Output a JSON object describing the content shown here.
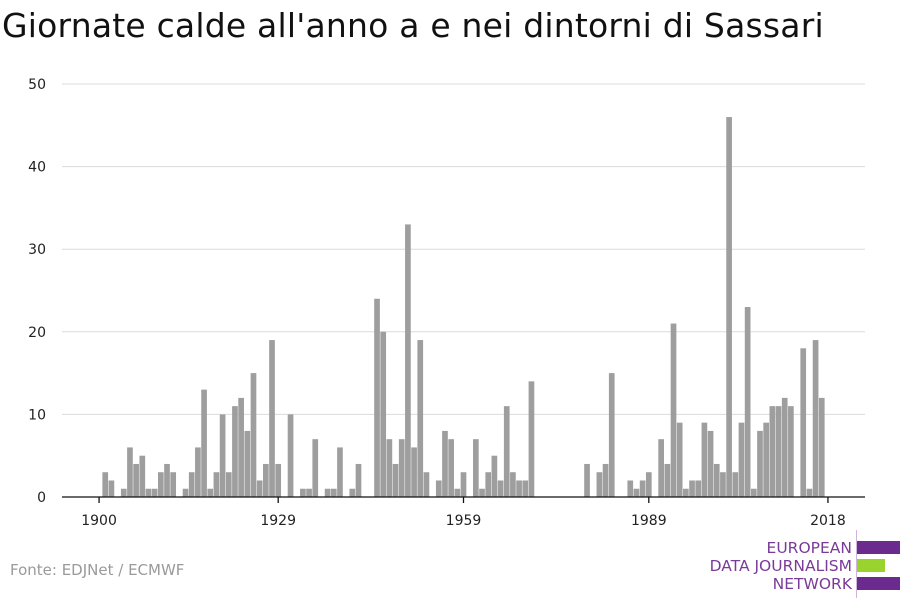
{
  "title": "Giornate calde all'anno a e nei dintorni di Sassari",
  "source": "Fonte: EDJNet / ECMWF",
  "brand": {
    "lines": [
      "EUROPEAN",
      "DATA JOURNALISM",
      "NETWORK"
    ],
    "colors": {
      "purple": "#6a2a8e",
      "green": "#9ad22e",
      "text": "#7a3b98"
    }
  },
  "chart_data": {
    "type": "bar",
    "title": "Giornate calde all'anno a e nei dintorni di Sassari",
    "xlabel": "",
    "ylabel": "",
    "x_ticks": [
      1900,
      1929,
      1959,
      1989,
      2018
    ],
    "y_ticks": [
      0,
      10,
      20,
      30,
      40,
      50
    ],
    "xlim": [
      1894,
      2024
    ],
    "ylim": [
      0,
      50
    ],
    "grid": true,
    "bar_color": "#9e9e9e",
    "series": [
      {
        "x": [
          1900,
          1901,
          1902,
          1903,
          1904,
          1905,
          1906,
          1907,
          1908,
          1909,
          1910,
          1911,
          1912,
          1913,
          1914,
          1915,
          1916,
          1917,
          1918,
          1919,
          1920,
          1921,
          1922,
          1923,
          1924,
          1925,
          1926,
          1927,
          1928,
          1929,
          1930,
          1931,
          1932,
          1933,
          1934,
          1935,
          1936,
          1937,
          1938,
          1939,
          1940,
          1941,
          1942,
          1943,
          1944,
          1945,
          1946,
          1947,
          1948,
          1949,
          1950,
          1951,
          1952,
          1953,
          1954,
          1955,
          1956,
          1957,
          1958,
          1959,
          1960,
          1961,
          1962,
          1963,
          1964,
          1965,
          1966,
          1967,
          1968,
          1969,
          1970,
          1971,
          1972,
          1973,
          1974,
          1975,
          1976,
          1977,
          1978,
          1979,
          1980,
          1981,
          1982,
          1983,
          1984,
          1985,
          1986,
          1987,
          1988,
          1989,
          1990,
          1991,
          1992,
          1993,
          1994,
          1995,
          1996,
          1997,
          1998,
          1999,
          2000,
          2001,
          2002,
          2003,
          2004,
          2005,
          2006,
          2007,
          2008,
          2009,
          2010,
          2011,
          2012,
          2013,
          2014,
          2015,
          2016,
          2017,
          2018
        ],
        "values": [
          0,
          3,
          2,
          0,
          1,
          6,
          4,
          5,
          1,
          1,
          3,
          4,
          3,
          0,
          1,
          3,
          6,
          13,
          1,
          3,
          10,
          3,
          11,
          12,
          8,
          15,
          2,
          4,
          19,
          4,
          0,
          10,
          0,
          1,
          1,
          7,
          0,
          1,
          1,
          6,
          0,
          1,
          4,
          0,
          0,
          24,
          20,
          7,
          4,
          7,
          33,
          6,
          19,
          3,
          0,
          2,
          8,
          7,
          1,
          3,
          0,
          7,
          1,
          3,
          5,
          2,
          11,
          3,
          2,
          2,
          14,
          0,
          0,
          0,
          0,
          0,
          0,
          0,
          0,
          4,
          0,
          3,
          4,
          15,
          0,
          0,
          2,
          1,
          2,
          3,
          0,
          7,
          4,
          21,
          9,
          1,
          2,
          2,
          9,
          8,
          4,
          3,
          46,
          3,
          9,
          23,
          1,
          8,
          9,
          11,
          11,
          12,
          11,
          0,
          18,
          1,
          19,
          12,
          0
        ]
      }
    ]
  }
}
